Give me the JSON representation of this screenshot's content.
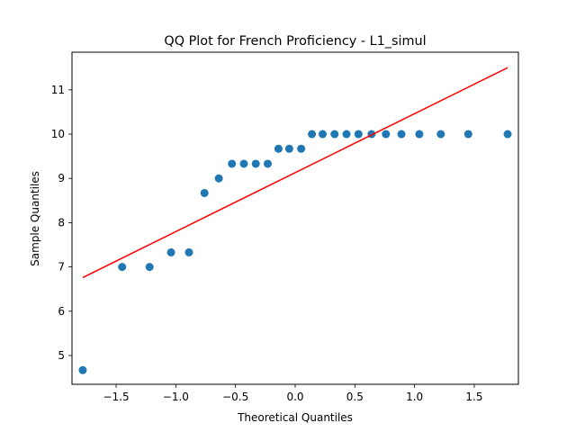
{
  "chart_data": {
    "type": "scatter",
    "title": "QQ Plot for French Proficiency - L1_simul",
    "xlabel": "Theoretical Quantiles",
    "ylabel": "Sample Quantiles",
    "xlim": [
      -1.87,
      1.87
    ],
    "ylim": [
      4.35,
      11.85
    ],
    "xticks": [
      -1.5,
      -1.0,
      -0.5,
      0.0,
      0.5,
      1.0,
      1.5
    ],
    "xtick_labels": [
      "−1.5",
      "−1.0",
      "−0.5",
      "0.0",
      "0.5",
      "1.0",
      "1.5"
    ],
    "yticks": [
      5,
      6,
      7,
      8,
      9,
      10,
      11
    ],
    "ytick_labels": [
      "5",
      "6",
      "7",
      "8",
      "9",
      "10",
      "11"
    ],
    "grid": false,
    "colors": {
      "points": "#1f77b4",
      "reference_line": "#ff0000"
    },
    "points": [
      {
        "x": -1.78,
        "y": 4.67
      },
      {
        "x": -1.45,
        "y": 7.0
      },
      {
        "x": -1.22,
        "y": 7.0
      },
      {
        "x": -1.04,
        "y": 7.33
      },
      {
        "x": -0.89,
        "y": 7.33
      },
      {
        "x": -0.76,
        "y": 8.67
      },
      {
        "x": -0.64,
        "y": 9.0
      },
      {
        "x": -0.53,
        "y": 9.33
      },
      {
        "x": -0.43,
        "y": 9.33
      },
      {
        "x": -0.33,
        "y": 9.33
      },
      {
        "x": -0.23,
        "y": 9.33
      },
      {
        "x": -0.14,
        "y": 9.67
      },
      {
        "x": -0.05,
        "y": 9.67
      },
      {
        "x": 0.05,
        "y": 9.67
      },
      {
        "x": 0.14,
        "y": 10.0
      },
      {
        "x": 0.23,
        "y": 10.0
      },
      {
        "x": 0.33,
        "y": 10.0
      },
      {
        "x": 0.43,
        "y": 10.0
      },
      {
        "x": 0.53,
        "y": 10.0
      },
      {
        "x": 0.64,
        "y": 10.0
      },
      {
        "x": 0.76,
        "y": 10.0
      },
      {
        "x": 0.89,
        "y": 10.0
      },
      {
        "x": 1.04,
        "y": 10.0
      },
      {
        "x": 1.22,
        "y": 10.0
      },
      {
        "x": 1.45,
        "y": 10.0
      },
      {
        "x": 1.78,
        "y": 10.0
      }
    ],
    "reference_line": {
      "x": [
        -1.78,
        1.78
      ],
      "y": [
        6.76,
        11.5
      ]
    }
  }
}
